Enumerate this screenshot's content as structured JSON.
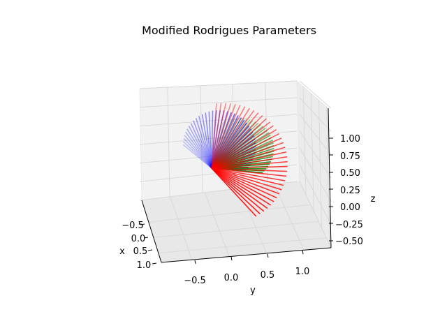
{
  "chart_data": {
    "type": "line",
    "projection": "3d",
    "title": "Modified Rodrigues Parameters",
    "xlabel": "x",
    "ylabel": "y",
    "zlabel": "z",
    "xticks": [
      "−0.5",
      "0.0",
      "0.5",
      "1.0"
    ],
    "yticks": [
      "−0.5",
      "0.0",
      "0.5",
      "1.0"
    ],
    "zticks": [
      "−0.50",
      "−0.25",
      "0.00",
      "0.25",
      "0.50",
      "0.75",
      "1.00"
    ],
    "xlim": [
      -1.0,
      1.2
    ],
    "ylim": [
      -1.0,
      1.4
    ],
    "zlim": [
      -0.6,
      1.1
    ],
    "grid": true,
    "origin": [
      0,
      0,
      0
    ],
    "series": [
      {
        "color": "#0000ff",
        "description": "blue frame axes, sweeping downward; alpha fades toward early frames",
        "count": 40,
        "alpha_range": [
          0.2,
          0.9
        ]
      },
      {
        "color": "#ff0000",
        "description": "red frame axes, sweeping upward/right",
        "count": 36,
        "alpha_range": [
          0.4,
          0.9
        ]
      },
      {
        "color": "#008000",
        "description": "green frame axes, between red and x-direction",
        "count": 34,
        "alpha_range": [
          0.15,
          0.9
        ]
      }
    ]
  }
}
